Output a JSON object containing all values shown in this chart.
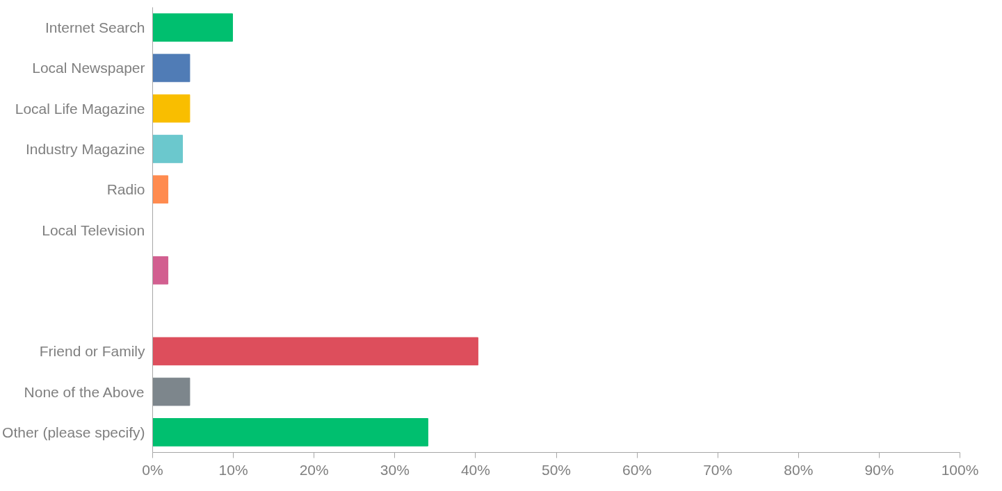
{
  "chart_data": {
    "type": "bar",
    "orientation": "horizontal",
    "categories": [
      "Internet Search",
      "Local Newspaper",
      "Local Life Magazine",
      "Industry Magazine",
      "Radio",
      "Local Television",
      null,
      null,
      "Friend or Family",
      "None of the Above",
      "Other (please specify)"
    ],
    "values": [
      9.9,
      4.6,
      4.6,
      3.7,
      1.9,
      0,
      1.9,
      0,
      40.3,
      4.6,
      34.1
    ],
    "colors": [
      "#00bf6f",
      "#507cb6",
      "#f9be00",
      "#6bc8cd",
      "#ff8b4f",
      "#a6a6a6",
      "#d25f90",
      "#a6a6a6",
      "#dd4e5c",
      "#7d868c",
      "#00bf6f"
    ],
    "xlim": [
      0,
      100
    ],
    "xticks": [
      {
        "value": 0,
        "label": "0%"
      },
      {
        "value": 10,
        "label": "10%"
      },
      {
        "value": 20,
        "label": "20%"
      },
      {
        "value": 30,
        "label": "30%"
      },
      {
        "value": 40,
        "label": "40%"
      },
      {
        "value": 50,
        "label": "50%"
      },
      {
        "value": 60,
        "label": "60%"
      },
      {
        "value": 70,
        "label": "70%"
      },
      {
        "value": 80,
        "label": "80%"
      },
      {
        "value": 90,
        "label": "90%"
      },
      {
        "value": 100,
        "label": "100%"
      }
    ],
    "grid": false
  }
}
